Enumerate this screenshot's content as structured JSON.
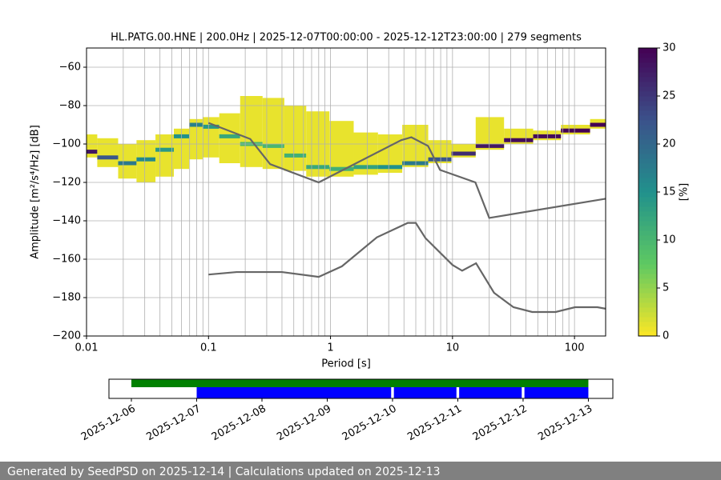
{
  "chart_data": [
    {
      "type": "psd",
      "title": "HL.PATG.00.HNE | 200.0Hz | 2025-12-07T00:00:00 - 2025-12-12T23:00:00 | 279 segments",
      "x_label": "Period [s]",
      "y_label": "Amplitude [m²/s⁴/Hz] [dB]",
      "log_x": true,
      "grid": true,
      "x_minor_grid": true,
      "xlim": [
        0.01,
        180
      ],
      "xticks": [
        0.01,
        0.1,
        1,
        10,
        100
      ],
      "ylim": [
        -200,
        -50
      ],
      "yticks": [
        {
          "value": -200,
          "label": "−200"
        },
        {
          "value": -180,
          "label": "−180"
        },
        {
          "value": -160,
          "label": "−160"
        },
        {
          "value": -140,
          "label": "−140"
        },
        {
          "value": -120,
          "label": "−120"
        },
        {
          "value": -100,
          "label": "−100"
        },
        {
          "value": -80,
          "label": "−80"
        },
        {
          "value": -60,
          "label": "−60"
        }
      ],
      "pdf": {
        "periods": [
          0.01,
          0.015,
          0.022,
          0.03,
          0.045,
          0.06,
          0.08,
          0.1,
          0.15,
          0.22,
          0.35,
          0.5,
          0.8,
          1.2,
          2,
          3,
          5,
          8,
          12,
          20,
          35,
          60,
          100,
          180
        ],
        "mode_db": [
          -104,
          -107,
          -110,
          -108,
          -103,
          -96,
          -90,
          -91,
          -96,
          -100,
          -101,
          -106,
          -112,
          -113,
          -112,
          -112,
          -110,
          -108,
          -105,
          -101,
          -98,
          -96,
          -93,
          -90
        ],
        "mode_percent": [
          28,
          22,
          18,
          16,
          14,
          15,
          17,
          14,
          12,
          10,
          10,
          11,
          12,
          11,
          13,
          15,
          18,
          22,
          26,
          28,
          29,
          29,
          30,
          30
        ],
        "upper_db": [
          -95,
          -97,
          -100,
          -98,
          -95,
          -92,
          -87,
          -86,
          -84,
          -75,
          -76,
          -80,
          -83,
          -88,
          -94,
          -95,
          -90,
          -98,
          -100,
          -86,
          -92,
          -93,
          -90,
          -87
        ],
        "lower_db": [
          -107,
          -112,
          -118,
          -120,
          -117,
          -113,
          -108,
          -107,
          -110,
          -112,
          -113,
          -114,
          -117,
          -117,
          -116,
          -115,
          -112,
          -110,
          -107,
          -103,
          -100,
          -98,
          -95,
          -92
        ],
        "spread_percent": 1
      },
      "noise_models": [
        {
          "name": "NHNM",
          "color": "#666666",
          "x": [
            0.1,
            0.22,
            0.32,
            0.8,
            3.8,
            4.6,
            6.3,
            7.9,
            15.4,
            20,
            180
          ],
          "values": [
            -89,
            -97.4,
            -110.5,
            -120,
            -98,
            -96.5,
            -101,
            -113.5,
            -120,
            -138.5,
            -128.5
          ]
        },
        {
          "name": "NLNM",
          "color": "#666666",
          "x": [
            0.1,
            0.17,
            0.4,
            0.8,
            1.24,
            2.4,
            4.3,
            5,
            6,
            10,
            12,
            15.6,
            21.9,
            31.6,
            45,
            70,
            101,
            154,
            180
          ],
          "values": [
            -168,
            -166.7,
            -166.7,
            -169.2,
            -163.7,
            -148.6,
            -141.1,
            -141.1,
            -149,
            -163,
            -166,
            -162.1,
            -177.5,
            -185,
            -187.5,
            -187.5,
            -185,
            -185,
            -185.8
          ]
        }
      ],
      "colorbar": {
        "label": "[%]",
        "lim": [
          0,
          30
        ],
        "ticks": [
          0,
          5,
          10,
          15,
          20,
          25,
          30
        ],
        "colors": [
          "#fde725",
          "#5ec962",
          "#21918c",
          "#3b528b",
          "#440154"
        ]
      }
    },
    {
      "type": "timeline",
      "xlim": [
        "2025-12-05T15:45",
        "2025-12-13T09:00"
      ],
      "xticks": [
        "2025-12-06",
        "2025-12-07",
        "2025-12-08",
        "2025-12-09",
        "2025-12-10",
        "2025-12-11",
        "2025-12-12",
        "2025-12-13"
      ],
      "total": {
        "color": "#008000",
        "span": [
          "2025-12-06T00:00",
          "2025-12-13T00:00"
        ]
      },
      "segments": {
        "color": "#0000ff",
        "spans": [
          [
            "2025-12-07T00:00",
            "2025-12-09T23:30"
          ],
          [
            "2025-12-10T00:30",
            "2025-12-10T23:30"
          ],
          [
            "2025-12-11T00:30",
            "2025-12-11T23:30"
          ],
          [
            "2025-12-12T00:30",
            "2025-12-13T00:00"
          ]
        ]
      }
    }
  ],
  "footer": "Generated by SeedPSD on 2025-12-14 | Calculations updated on 2025-12-13"
}
